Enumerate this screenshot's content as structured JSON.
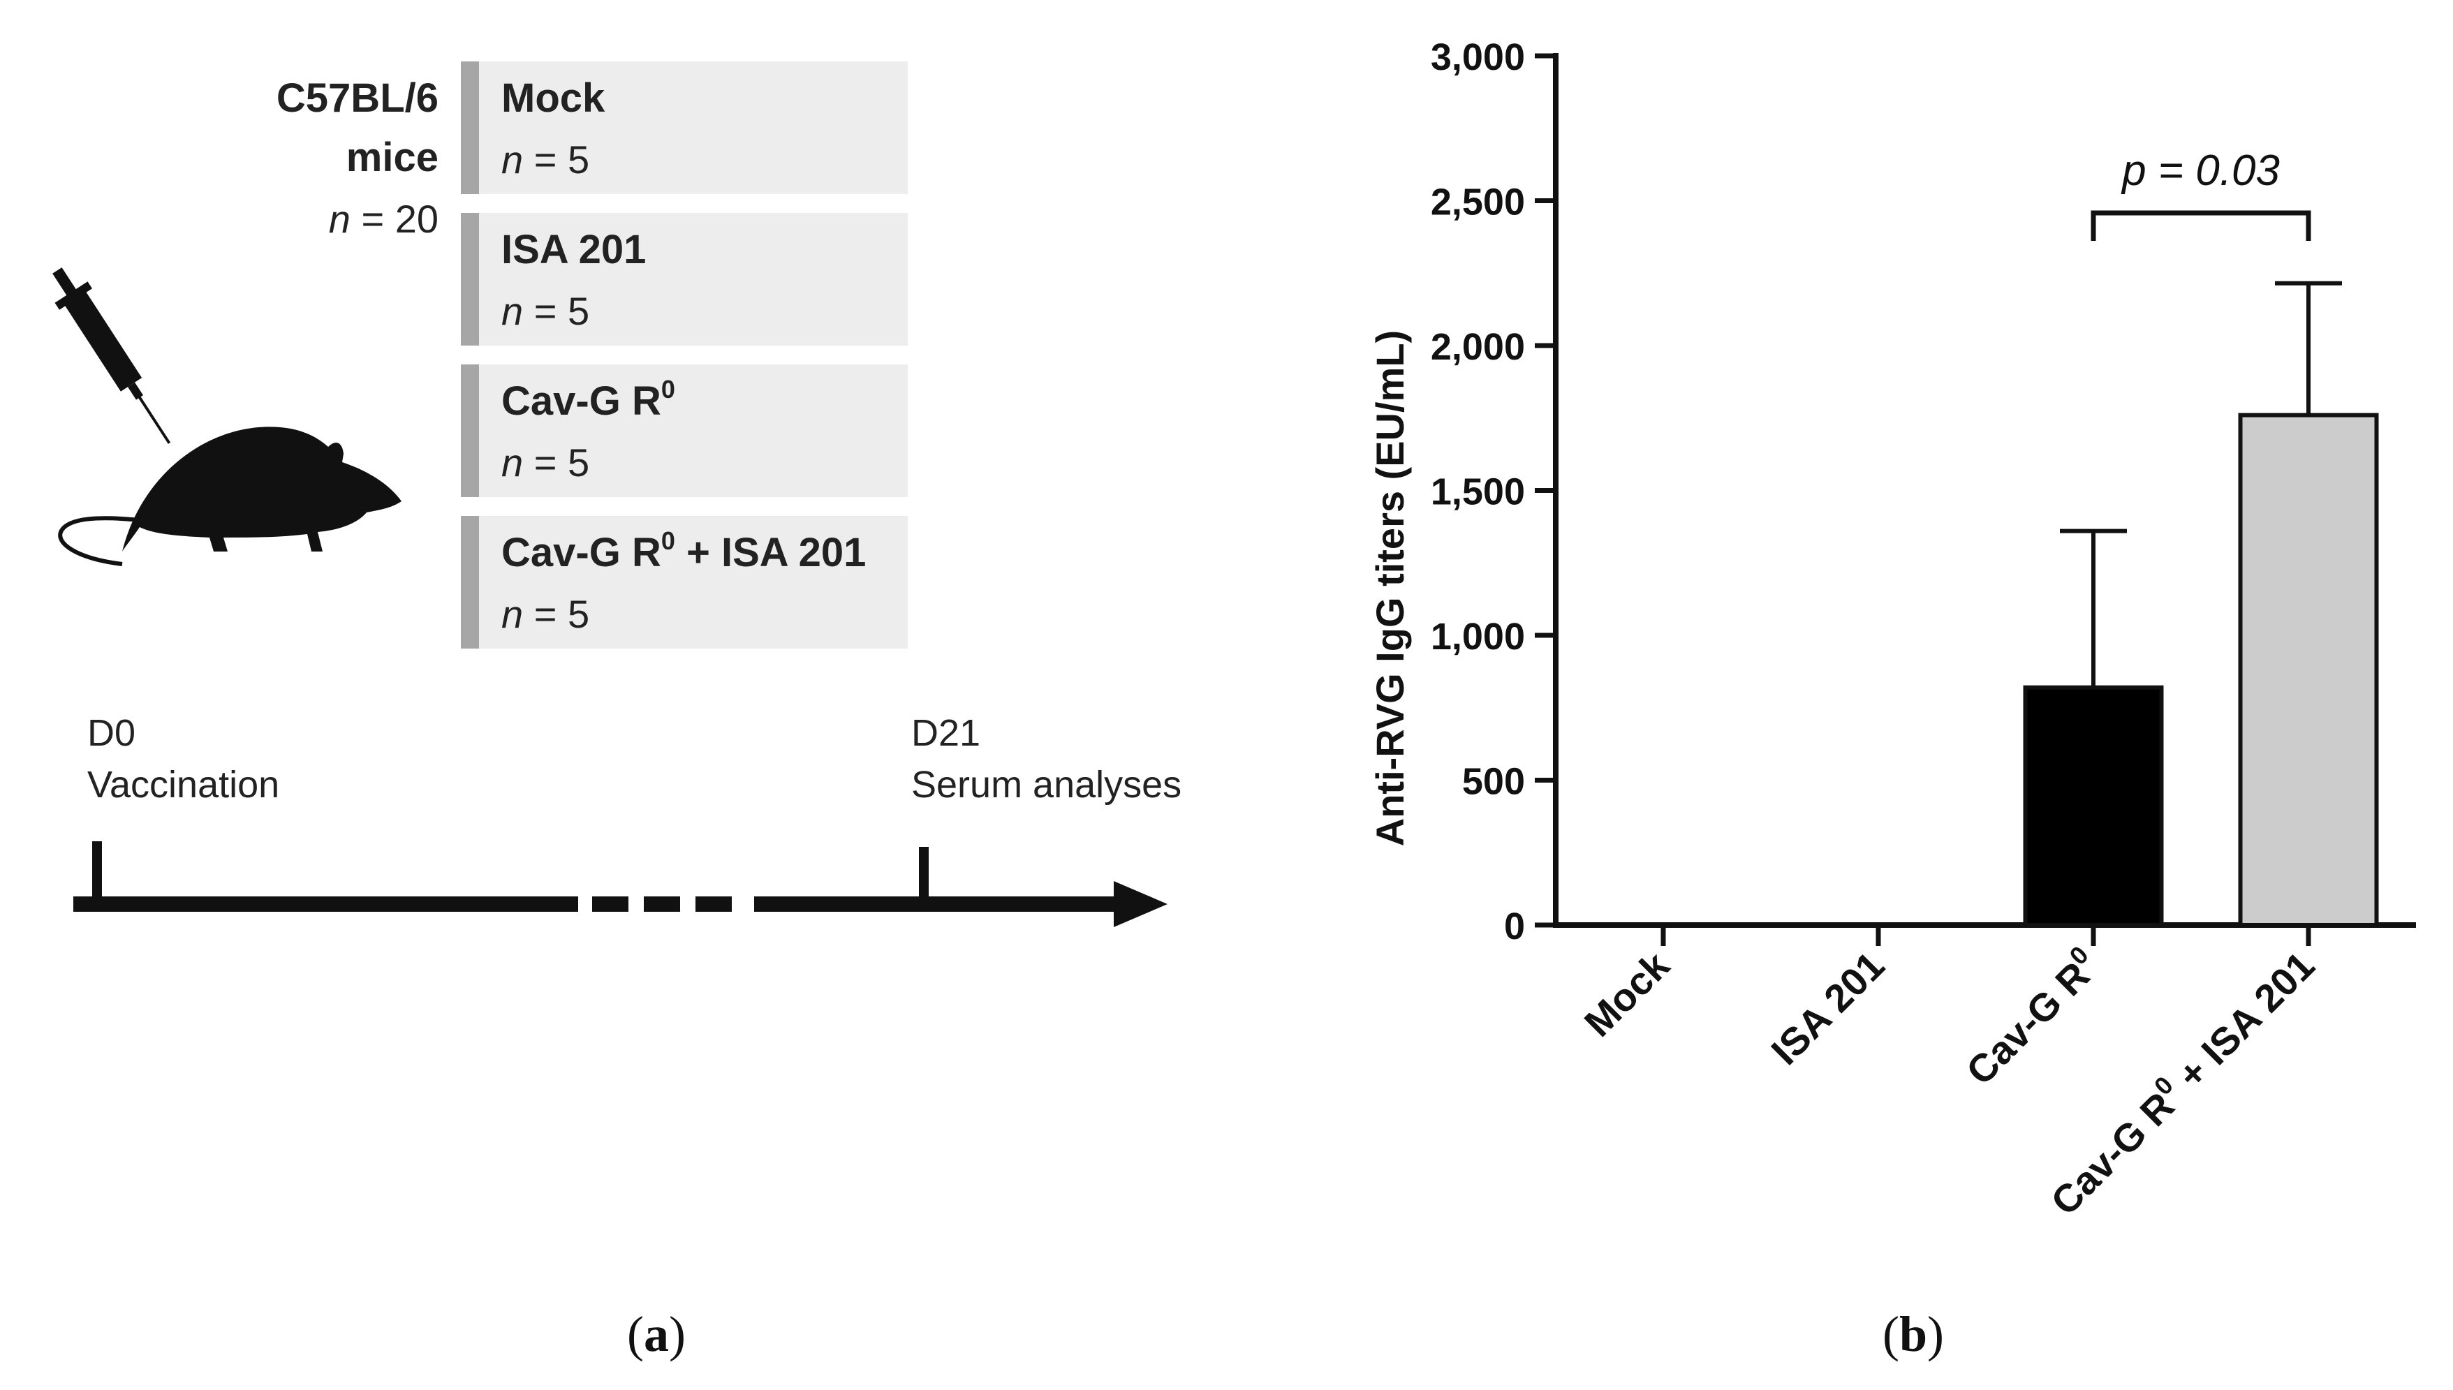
{
  "panel_a": {
    "strain": "C57BL/6",
    "strain_line2": "mice",
    "total_n_var": "n",
    "total_n_eq": " = 20",
    "groups": [
      {
        "name": "Mock",
        "sup": "",
        "suffix": "",
        "n_var": "n",
        "n_eq": " = 5"
      },
      {
        "name": "ISA 201",
        "sup": "",
        "suffix": "",
        "n_var": "n",
        "n_eq": " = 5"
      },
      {
        "name": "Cav-G R",
        "sup": "0",
        "suffix": "",
        "n_var": "n",
        "n_eq": " = 5"
      },
      {
        "name": "Cav-G R",
        "sup": "0",
        "suffix": " + ISA 201",
        "n_var": "n",
        "n_eq": " = 5"
      }
    ],
    "timeline": {
      "start_day": "D0",
      "start_label": "Vaccination",
      "end_day": "D21",
      "end_label": "Serum analyses"
    },
    "caption_open": "(",
    "caption_letter": "a",
    "caption_close": ")"
  },
  "panel_b": {
    "caption_open": "(",
    "caption_letter": "b",
    "caption_close": ")"
  },
  "chart_data": {
    "type": "bar",
    "categories": [
      "Mock",
      "ISA 201",
      "Cav-G R0",
      "Cav-G R0 + ISA 201"
    ],
    "category_labels": [
      {
        "main": "Mock",
        "sup": "",
        "suffix": ""
      },
      {
        "main": "ISA 201",
        "sup": "",
        "suffix": ""
      },
      {
        "main": "Cav-G R",
        "sup": "0",
        "suffix": ""
      },
      {
        "main": "Cav-G R",
        "sup": "0",
        "suffix": " + ISA 201"
      }
    ],
    "values": [
      0,
      0,
      820,
      1760
    ],
    "error_upper": [
      0,
      0,
      1360,
      2215
    ],
    "bar_colors": [
      "#000000",
      "#000000",
      "#000000",
      "#cccccc"
    ],
    "ylabel": "Anti-RVG  IgG titers (EU/mL)",
    "xlabel": "",
    "ylim": [
      0,
      3000
    ],
    "yticks": [
      0,
      500,
      1000,
      1500,
      2000,
      2500,
      3000
    ],
    "ytick_labels": [
      "0",
      "500",
      "1,000",
      "1,500",
      "2,000",
      "2,500",
      "3,000"
    ],
    "annotation": {
      "text": "p = 0.03",
      "between": [
        2,
        3
      ]
    },
    "grid": false,
    "legend": "none"
  }
}
